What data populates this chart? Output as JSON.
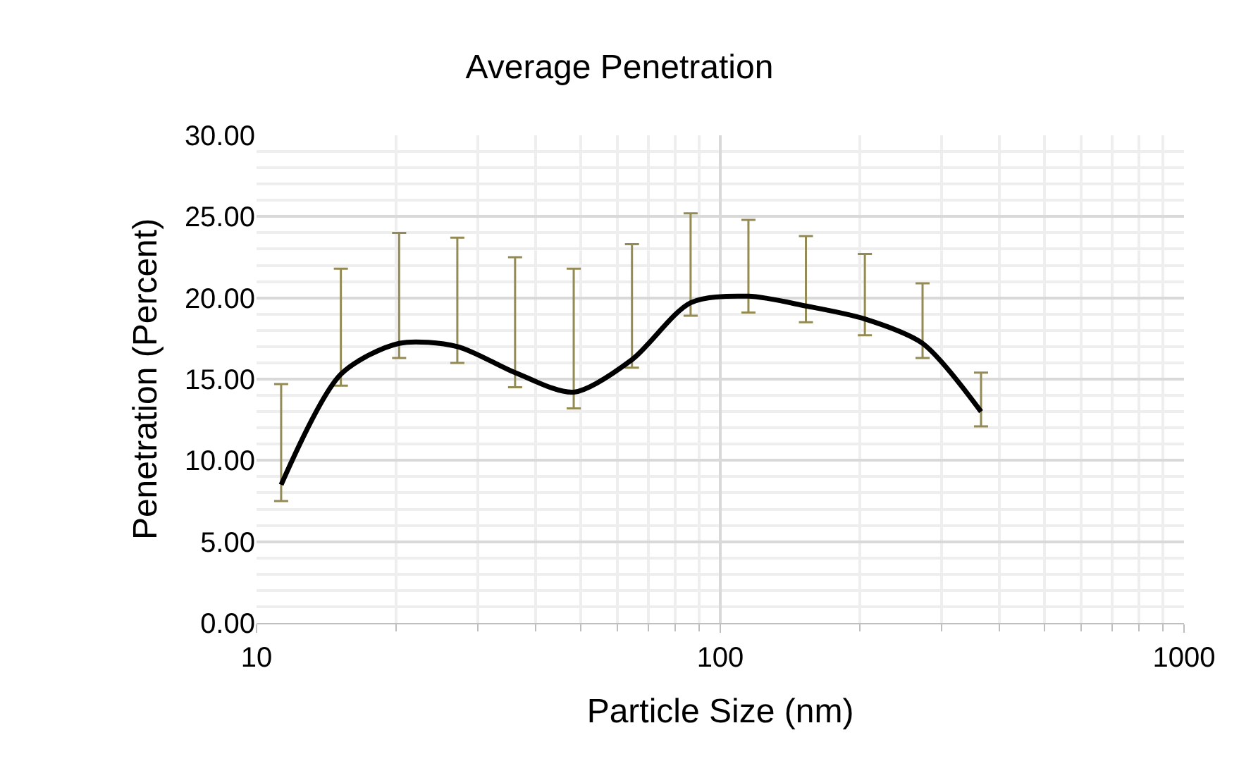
{
  "chart_data": {
    "type": "line",
    "title": "Average Penetration",
    "xlabel": "Particle Size (nm)",
    "ylabel": "Penetration (Percent)",
    "x": [
      11.3,
      15.2,
      20.3,
      27.1,
      36.1,
      48.3,
      64.5,
      86.3,
      115,
      153,
      205,
      273,
      365
    ],
    "series": [
      {
        "color": "#000000",
        "values": [
          8.5,
          15.3,
          17.2,
          17.0,
          15.4,
          14.2,
          16.2,
          19.7,
          20.1,
          19.5,
          18.7,
          17.2,
          13.0
        ],
        "errors": [
          [
            7.5,
            14.7
          ],
          [
            14.6,
            21.8
          ],
          [
            16.3,
            24.0
          ],
          [
            16.0,
            23.7
          ],
          [
            14.5,
            22.5
          ],
          [
            13.2,
            21.8
          ],
          [
            15.7,
            23.3
          ],
          [
            18.9,
            25.2
          ],
          [
            19.1,
            24.8
          ],
          [
            18.5,
            23.8
          ],
          [
            17.7,
            22.7
          ],
          [
            16.3,
            20.9
          ],
          [
            12.1,
            15.4
          ]
        ]
      }
    ],
    "log": "x",
    "xlim": [
      10,
      1000
    ],
    "xticks": [
      10,
      100,
      1000
    ],
    "ylim": [
      0,
      30
    ],
    "yticks": [
      {
        "value": 0,
        "label": "0.00"
      },
      {
        "value": 5,
        "label": "5.00"
      },
      {
        "value": 10,
        "label": "10.00"
      },
      {
        "value": 15,
        "label": "15.00"
      },
      {
        "value": 20,
        "label": "20.00"
      },
      {
        "value": 25,
        "label": "25.00"
      },
      {
        "value": 30,
        "label": "30.00"
      }
    ],
    "grid": true,
    "legend": false,
    "marker": "none",
    "line_style": "solid"
  }
}
